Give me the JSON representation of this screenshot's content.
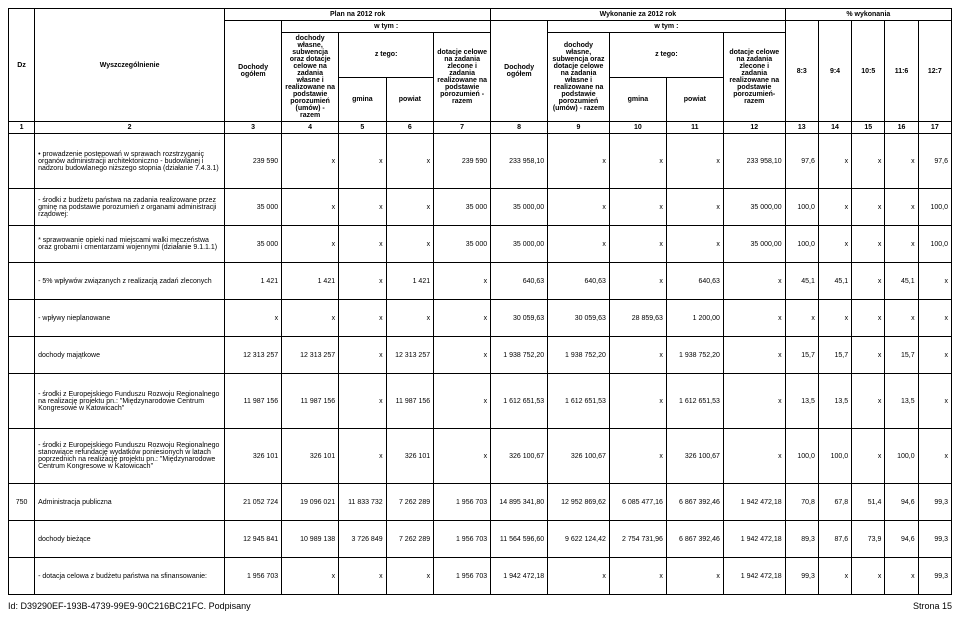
{
  "header": {
    "plan": "Plan na 2012 rok",
    "wykonanie": "Wykonanie za 2012 rok",
    "pct": "% wykonania",
    "wtym": "w tym :",
    "ztego": "z tego:",
    "dochody_ogolem": "Dochody ogółem",
    "col4": "dochody własne, subwencja oraz dotacje celowe na zadania własne i realizowane na podstawie porozumień (umów) - razem",
    "gmina": "gmina",
    "powiat": "powiat",
    "col7": "dotacje celowe na zadania zlecone i zadania realizowane na podstawie porozumień - razem",
    "col9": "dochody własne, subwencja oraz dotacje celowe na zadania własne i realizowane na podstawie porozumień (umów) - razem",
    "col12": "dotacje celowe na zadania zlecone i zadania realizowane na podstawie porozumień-razem",
    "c13": "8:3",
    "c14": "9:4",
    "c15": "10:5",
    "c16": "11:6",
    "c17": "12:7",
    "dz": "Dz",
    "wysz": "Wyszczególnienie"
  },
  "numrow": {
    "c1": "1",
    "c2": "2",
    "c3": "3",
    "c4": "4",
    "c5": "5",
    "c6": "6",
    "c7": "7",
    "c8": "8",
    "c9": "9",
    "c10": "10",
    "c11": "11",
    "c12": "12",
    "c13": "13",
    "c14": "14",
    "c15": "15",
    "c16": "16",
    "c17": "17"
  },
  "rows": [
    {
      "desc": "• prowadzenie postępowań w sprawach rozstrzyganiç organów administracji architektoniczno - budowlanej i nadzoru budowlanego niższego stopnia (działanie 7.4.3.1)",
      "c3": "239 590",
      "c4": "x",
      "c5": "x",
      "c6": "x",
      "c7": "239 590",
      "c8": "233 958,10",
      "c9": "x",
      "c10": "x",
      "c11": "x",
      "c12": "233 958,10",
      "c13": "97,6",
      "c14": "x",
      "c15": "x",
      "c16": "x",
      "c17": "97,6"
    },
    {
      "desc": "- środki z budżetu państwa na zadania realizowane przez gminę na podstawie porozumień z organami administracji rządowej:",
      "c3": "35 000",
      "c4": "x",
      "c5": "x",
      "c6": "x",
      "c7": "35 000",
      "c8": "35 000,00",
      "c9": "x",
      "c10": "x",
      "c11": "x",
      "c12": "35 000,00",
      "c13": "100,0",
      "c14": "x",
      "c15": "x",
      "c16": "x",
      "c17": "100,0"
    },
    {
      "desc": "* sprawowanie opieki nad miejscami walki męczeństwa oraz grobami i cmentarzami wojennymi (działanie 9.1.1.1)",
      "c3": "35 000",
      "c4": "x",
      "c5": "x",
      "c6": "x",
      "c7": "35 000",
      "c8": "35 000,00",
      "c9": "x",
      "c10": "x",
      "c11": "x",
      "c12": "35 000,00",
      "c13": "100,0",
      "c14": "x",
      "c15": "x",
      "c16": "x",
      "c17": "100,0"
    },
    {
      "desc": "- 5% wpływów związanych z realizacją zadań zleconych",
      "c3": "1 421",
      "c4": "1 421",
      "c5": "x",
      "c6": "1 421",
      "c7": "x",
      "c8": "640,63",
      "c9": "640,63",
      "c10": "x",
      "c11": "640,63",
      "c12": "x",
      "c13": "45,1",
      "c14": "45,1",
      "c15": "x",
      "c16": "45,1",
      "c17": "x"
    },
    {
      "desc": "- wpływy nieplanowane",
      "c3": "x",
      "c4": "x",
      "c5": "x",
      "c6": "x",
      "c7": "x",
      "c8": "30 059,63",
      "c9": "30 059,63",
      "c10": "28 859,63",
      "c11": "1 200,00",
      "c12": "x",
      "c13": "x",
      "c14": "x",
      "c15": "x",
      "c16": "x",
      "c17": "x"
    },
    {
      "desc": "dochody majątkowe",
      "c3": "12 313 257",
      "c4": "12 313 257",
      "c5": "x",
      "c6": "12 313 257",
      "c7": "x",
      "c8": "1 938 752,20",
      "c9": "1 938 752,20",
      "c10": "x",
      "c11": "1 938 752,20",
      "c12": "x",
      "c13": "15,7",
      "c14": "15,7",
      "c15": "x",
      "c16": "15,7",
      "c17": "x"
    },
    {
      "desc": "- środki z Europejskiego Funduszu Rozwoju Regionalnego na realizację projektu pn.: \"Międzynarodowe Centrum Kongresowe w Katowicach\"",
      "c3": "11 987 156",
      "c4": "11 987 156",
      "c5": "x",
      "c6": "11 987 156",
      "c7": "x",
      "c8": "1 612 651,53",
      "c9": "1 612 651,53",
      "c10": "x",
      "c11": "1 612 651,53",
      "c12": "x",
      "c13": "13,5",
      "c14": "13,5",
      "c15": "x",
      "c16": "13,5",
      "c17": "x"
    },
    {
      "desc": "- środki z Europejskiego Funduszu Rozwoju Regionalnego stanowiące refundację wydatków poniesionych w latach poprzednich na realizację projektu pn.: \"Międzynarodowe Centrum Kongresowe w Katowicach\"",
      "c3": "326 101",
      "c4": "326 101",
      "c5": "x",
      "c6": "326 101",
      "c7": "x",
      "c8": "326 100,67",
      "c9": "326 100,67",
      "c10": "x",
      "c11": "326 100,67",
      "c12": "x",
      "c13": "100,0",
      "c14": "100,0",
      "c15": "x",
      "c16": "100,0",
      "c17": "x"
    },
    {
      "dz": "750",
      "desc": "Administracja publiczna",
      "c3": "21 052 724",
      "c4": "19 096 021",
      "c5": "11 833 732",
      "c6": "7 262 289",
      "c7": "1 956 703",
      "c8": "14 895 341,80",
      "c9": "12 952 869,62",
      "c10": "6 085 477,16",
      "c11": "6 867 392,46",
      "c12": "1 942 472,18",
      "c13": "70,8",
      "c14": "67,8",
      "c15": "51,4",
      "c16": "94,6",
      "c17": "99,3"
    },
    {
      "desc": "dochody bieżące",
      "c3": "12 945 841",
      "c4": "10 989 138",
      "c5": "3 726 849",
      "c6": "7 262 289",
      "c7": "1 956 703",
      "c8": "11 564 596,60",
      "c9": "9 622 124,42",
      "c10": "2 754 731,96",
      "c11": "6 867 392,46",
      "c12": "1 942 472,18",
      "c13": "89,3",
      "c14": "87,6",
      "c15": "73,9",
      "c16": "94,6",
      "c17": "99,3"
    },
    {
      "desc": "- dotacja celowa z budżetu państwa na sfinansowanie:",
      "c3": "1 956 703",
      "c4": "x",
      "c5": "x",
      "c6": "x",
      "c7": "1 956 703",
      "c8": "1 942 472,18",
      "c9": "x",
      "c10": "x",
      "c11": "x",
      "c12": "1 942 472,18",
      "c13": "99,3",
      "c14": "x",
      "c15": "x",
      "c16": "x",
      "c17": "99,3"
    }
  ],
  "footer": {
    "left": "Id: D39290EF-193B-4739-99E9-90C216BC21FC. Podpisany",
    "right": "Strona 15"
  }
}
